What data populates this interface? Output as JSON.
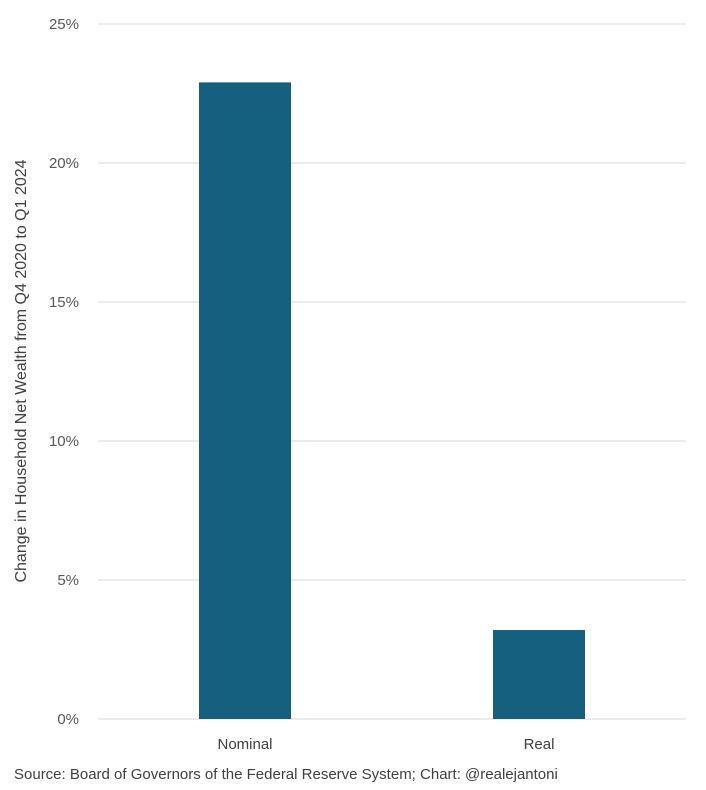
{
  "chart_data": {
    "type": "bar",
    "categories": [
      "Nominal",
      "Real"
    ],
    "values": [
      22.9,
      3.2
    ],
    "ylabel": "Change in Household Net Wealth from Q4 2020 to Q1 2024",
    "xlabel": "",
    "ylim": [
      0,
      25
    ],
    "yticks": [
      "0%",
      "5%",
      "10%",
      "15%",
      "20%",
      "25%"
    ],
    "ytick_values": [
      0,
      5,
      10,
      15,
      20,
      25
    ],
    "grid": true,
    "legend": "none",
    "bar_color": "#16607f",
    "grid_color": "#d9d9d9"
  },
  "footer": {
    "source": "Source: Board of Governors of the Federal Reserve System; Chart: @realejantoni"
  }
}
